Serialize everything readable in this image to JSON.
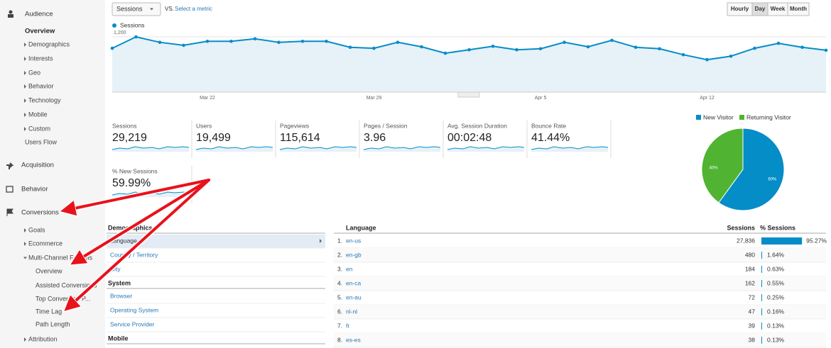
{
  "toolbar": {
    "metric": "Sessions",
    "vs": "VS.",
    "select_metric": "Select a metric",
    "granularity": [
      "Hourly",
      "Day",
      "Week",
      "Month"
    ]
  },
  "sidebar": {
    "items": [
      "Audience",
      "Overview",
      "Demographics",
      "Interests",
      "Geo",
      "Behavior",
      "Technology",
      "Mobile",
      "Custom",
      "Users Flow",
      "Acquisition",
      "Behavior",
      "Conversions",
      "Goals",
      "Ecommerce",
      "Multi-Channel Funnels",
      "Overview",
      "Assisted Conversions",
      "Top Conversion P...",
      "Time Lag",
      "Path Length",
      "Attribution"
    ]
  },
  "chart_data": [
    {
      "type": "line",
      "categories": [
        null,
        null,
        null,
        null,
        "Mar 22",
        null,
        null,
        null,
        null,
        null,
        null,
        "Mar 29",
        null,
        null,
        null,
        null,
        null,
        null,
        "Apr 5",
        null,
        null,
        null,
        null,
        null,
        null,
        "Apr 12",
        null,
        null,
        null,
        null,
        null
      ],
      "series": [
        {
          "name": "Sessions",
          "color": "#058dc7",
          "values": [
            970,
            1200,
            1090,
            1030,
            1110,
            1110,
            1160,
            1090,
            1110,
            1110,
            990,
            970,
            1090,
            1000,
            870,
            940,
            1010,
            940,
            960,
            1090,
            1000,
            1130,
            990,
            960,
            840,
            740,
            810,
            970,
            1070,
            990,
            930
          ]
        }
      ],
      "ylim": [
        0,
        1300
      ],
      "yticks": [
        600,
        {
          "value": 1200,
          "label": "1,200"
        }
      ],
      "grid": true
    },
    {
      "type": "pie",
      "categories": [
        "New Visitor",
        "Returning Visitor"
      ],
      "values": [
        60,
        40
      ],
      "value_labels": [
        "60%",
        "40%"
      ],
      "colors": [
        "#058dc7",
        "#50b432"
      ]
    }
  ],
  "scorecards": [
    {
      "label": "Sessions",
      "value": "29,219"
    },
    {
      "label": "Users",
      "value": "19,499"
    },
    {
      "label": "Pageviews",
      "value": "115,614"
    },
    {
      "label": "Pages / Session",
      "value": "3.96"
    },
    {
      "label": "Avg. Session Duration",
      "value": "00:02:48"
    },
    {
      "label": "Bounce Rate",
      "value": "41.44%"
    },
    {
      "label": "% New Sessions",
      "value": "59.99%"
    }
  ],
  "demographics": {
    "sections": [
      {
        "title": "Demographics",
        "items": [
          "Language",
          "Country / Territory",
          "City"
        ]
      },
      {
        "title": "System",
        "items": [
          "Browser",
          "Operating System",
          "Service Provider"
        ]
      },
      {
        "title": "Mobile",
        "items": []
      }
    ]
  },
  "language_table": {
    "headers": [
      "Language",
      "Sessions",
      "% Sessions"
    ],
    "rows": [
      {
        "rank": "1.",
        "language": "en-us",
        "sessions": "27,836",
        "share": 95.27,
        "share_label": "95.27%"
      },
      {
        "rank": "2.",
        "language": "en-gb",
        "sessions": "480",
        "share": 1.64,
        "share_label": "1.64%"
      },
      {
        "rank": "3.",
        "language": "en",
        "sessions": "184",
        "share": 0.63,
        "share_label": "0.63%"
      },
      {
        "rank": "4.",
        "language": "en-ca",
        "sessions": "162",
        "share": 0.55,
        "share_label": "0.55%"
      },
      {
        "rank": "5.",
        "language": "en-au",
        "sessions": "72",
        "share": 0.25,
        "share_label": "0.25%"
      },
      {
        "rank": "6.",
        "language": "nl-nl",
        "sessions": "47",
        "share": 0.16,
        "share_label": "0.16%"
      },
      {
        "rank": "7.",
        "language": "fr",
        "sessions": "39",
        "share": 0.13,
        "share_label": "0.13%"
      },
      {
        "rank": "8.",
        "language": "es-es",
        "sessions": "38",
        "share": 0.13,
        "share_label": "0.13%"
      }
    ]
  }
}
